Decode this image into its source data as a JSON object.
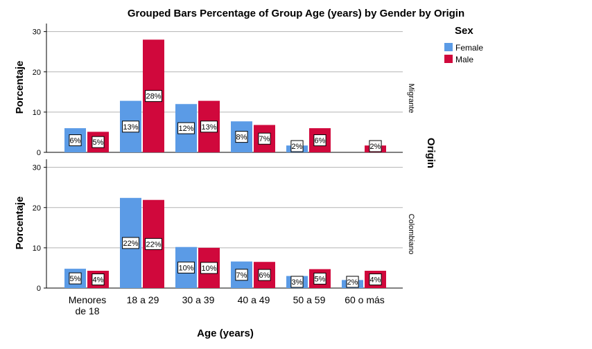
{
  "chart_data": {
    "type": "bar",
    "title": "Grouped Bars Percentage of Group Age (years) by Gender by Origin",
    "xlabel": "Age (years)",
    "ylabel": "Porcentaje",
    "ylim": [
      0,
      32
    ],
    "yticks": [
      0,
      10,
      20,
      30
    ],
    "grid": true,
    "categories": [
      "Menores de 18",
      "18 a 29",
      "30 a 39",
      "40 a 49",
      "50 a 59",
      "60 o más"
    ],
    "category_lines": [
      [
        "Menores",
        "de 18"
      ],
      [
        "18 a 29"
      ],
      [
        "30 a 39"
      ],
      [
        "40 a 49"
      ],
      [
        "50 a 59"
      ],
      [
        "60 o más"
      ]
    ],
    "legend": {
      "title": "Sex",
      "position": "top-right"
    },
    "panel_title": "Origin",
    "colors": {
      "Female": "#5b9be6",
      "Male": "#d0083c"
    },
    "panels": [
      {
        "name": "Migrante",
        "series": [
          {
            "name": "Female",
            "values": [
              6,
              12.8,
              12,
              7.7,
              1.7,
              0
            ],
            "labels": [
              "6%",
              "13%",
              "12%",
              "8%",
              "2%",
              ""
            ]
          },
          {
            "name": "Male",
            "values": [
              5.1,
              28,
              12.8,
              6.8,
              6,
              1.7
            ],
            "labels": [
              "5%",
              "28%",
              "13%",
              "7%",
              "6%",
              "2%"
            ]
          }
        ]
      },
      {
        "name": "Colombiano",
        "series": [
          {
            "name": "Female",
            "values": [
              4.8,
              22.4,
              10.2,
              6.6,
              3,
              2
            ],
            "labels": [
              "5%",
              "22%",
              "10%",
              "7%",
              "3%",
              "2%"
            ]
          },
          {
            "name": "Male",
            "values": [
              4.3,
              21.9,
              10,
              6.5,
              4.7,
              4.3
            ],
            "labels": [
              "4%",
              "22%",
              "10%",
              "6%",
              "5%",
              "4%"
            ]
          }
        ]
      }
    ]
  }
}
